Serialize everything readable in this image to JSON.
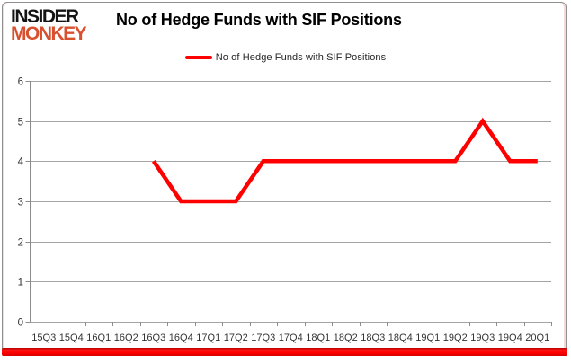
{
  "logo": {
    "line1": "INSIDER",
    "line2": "MONKEY",
    "line2_color": "#d8502e"
  },
  "header": {
    "title": "No of Hedge Funds with SIF Positions"
  },
  "legend": {
    "label": "No of Hedge Funds with SIF Positions",
    "color": "#ff0000"
  },
  "chart_data": {
    "type": "line",
    "title": "No of Hedge Funds with SIF Positions",
    "categories": [
      "15Q3",
      "15Q4",
      "16Q1",
      "16Q2",
      "16Q3",
      "16Q4",
      "17Q1",
      "17Q2",
      "17Q3",
      "17Q4",
      "18Q1",
      "18Q2",
      "18Q3",
      "18Q4",
      "19Q1",
      "19Q2",
      "19Q3",
      "19Q4",
      "20Q1"
    ],
    "series": [
      {
        "name": "No of Hedge Funds with SIF Positions",
        "color": "#ff0000",
        "values": [
          null,
          null,
          null,
          null,
          4,
          3,
          3,
          3,
          4,
          4,
          4,
          4,
          4,
          4,
          4,
          4,
          5,
          4,
          4
        ]
      }
    ],
    "xlabel": "",
    "ylabel": "",
    "ylim": [
      0,
      6
    ],
    "ytick_step": 1,
    "grid": true,
    "legend_position": "top-center",
    "colors": {
      "gridline": "#a3a3a3",
      "axis": "#8c8c8c",
      "tick_label": "#333333"
    }
  }
}
